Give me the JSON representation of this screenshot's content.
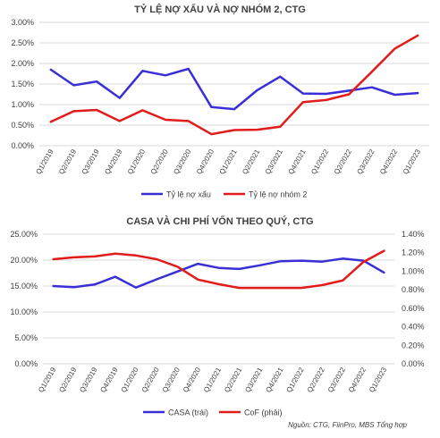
{
  "colors": {
    "blue": "#3a2fd6",
    "red": "#e21b1b",
    "grid": "#d9d9d9",
    "text": "#404040",
    "title": "#404040"
  },
  "source_note": "Nguồn: CTG, FiinPro, MBS Tổng hợp",
  "chart_data": [
    {
      "type": "line",
      "title": "TỶ LỆ NỢ XẤU VÀ NỢ NHÓM 2, CTG",
      "categories": [
        "Q1/2019",
        "Q2/2019",
        "Q3/2019",
        "Q4/2019",
        "Q1/2020",
        "Q2/2020",
        "Q3/2020",
        "Q4/2020",
        "Q1/2021",
        "Q2/2021",
        "Q3/2021",
        "Q4/2021",
        "Q1/2022",
        "Q2/2022",
        "Q3/2022",
        "Q4/2022",
        "Q1/2023"
      ],
      "y_ticks": [
        "0.00%",
        "0.50%",
        "1.00%",
        "1.50%",
        "2.00%",
        "2.50%",
        "3.00%"
      ],
      "ylim": [
        0,
        3.0
      ],
      "grid": true,
      "legend_position": "bottom",
      "series": [
        {
          "name": "Tỷ lệ nợ xấu",
          "color": "#3a2fd6",
          "axis": "left",
          "values": [
            1.85,
            1.47,
            1.56,
            1.16,
            1.82,
            1.71,
            1.87,
            0.94,
            0.89,
            1.35,
            1.68,
            1.27,
            1.26,
            1.34,
            1.42,
            1.24,
            1.28
          ]
        },
        {
          "name": "Tỷ lệ nợ nhóm 2",
          "color": "#e21b1b",
          "axis": "left",
          "values": [
            0.58,
            0.84,
            0.87,
            0.6,
            0.86,
            0.63,
            0.6,
            0.28,
            0.38,
            0.39,
            0.46,
            1.06,
            1.11,
            1.25,
            1.8,
            2.36,
            2.68
          ]
        }
      ]
    },
    {
      "type": "line",
      "title": "CASA VÀ CHI PHÍ VỐN THEO QUÝ, CTG",
      "categories": [
        "Q1/2019",
        "Q2/2019",
        "Q3/2019",
        "Q4/2019",
        "Q1/2020",
        "Q2/2020",
        "Q3/2020",
        "Q4/2020",
        "Q1/2021",
        "Q2/2021",
        "Q3/2021",
        "Q4/2021",
        "Q1/2022",
        "Q2/2022",
        "Q3/2022",
        "Q4/2022",
        "Q1/2023"
      ],
      "y_ticks": [
        "0.00%",
        "5.00%",
        "10.00%",
        "15.00%",
        "20.00%",
        "25.00%"
      ],
      "ylim": [
        0,
        25
      ],
      "y2_ticks": [
        "0.00%",
        "0.20%",
        "0.40%",
        "0.60%",
        "0.80%",
        "1.00%",
        "1.20%",
        "1.40%"
      ],
      "y2lim": [
        0,
        1.4
      ],
      "grid": true,
      "legend_position": "bottom",
      "series": [
        {
          "name": "CASA (trái)",
          "color": "#3a2fd6",
          "axis": "left",
          "values": [
            15.0,
            14.8,
            15.3,
            16.8,
            14.7,
            16.3,
            17.8,
            19.3,
            18.5,
            18.3,
            19.0,
            19.8,
            19.9,
            19.7,
            20.3,
            19.9,
            17.6
          ]
        },
        {
          "name": "CoF (phải)",
          "color": "#e21b1b",
          "axis": "right",
          "values": [
            1.13,
            1.15,
            1.16,
            1.19,
            1.17,
            1.13,
            1.05,
            0.91,
            0.86,
            0.82,
            0.82,
            0.82,
            0.82,
            0.85,
            0.9,
            1.1,
            1.22
          ]
        }
      ]
    }
  ]
}
